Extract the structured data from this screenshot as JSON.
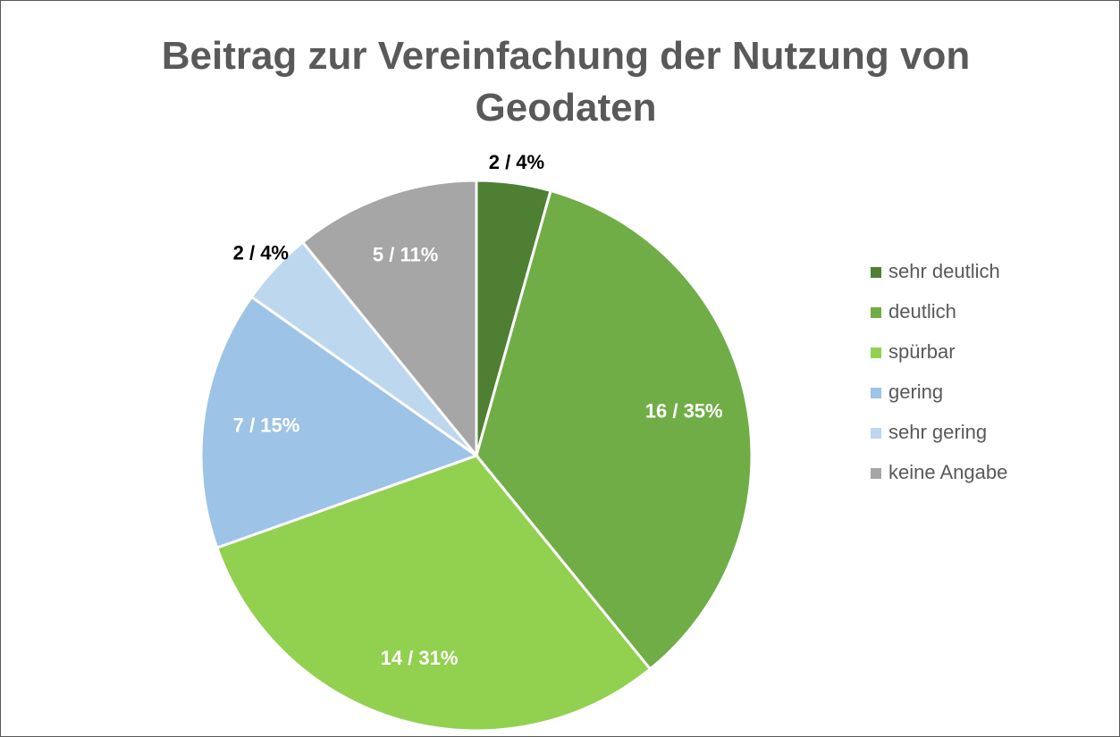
{
  "chart_data": {
    "type": "pie",
    "title": "Beitrag zur Vereinfachung der Nutzung von Geodaten",
    "categories": [
      "sehr deutlich",
      "deutlich",
      "spürbar",
      "gering",
      "sehr gering",
      "keine Angabe"
    ],
    "values": [
      2,
      16,
      14,
      7,
      2,
      5
    ],
    "value_labels": [
      "2 /  4%",
      "16 /  35%",
      "14 /  31%",
      "7 /  15%",
      "2 /  4%",
      "5 /  11%"
    ],
    "colors": [
      "#4e7f33",
      "#70ad47",
      "#92d050",
      "#9dc3e6",
      "#bdd7ee",
      "#a6a6a6"
    ],
    "legend": "right"
  }
}
